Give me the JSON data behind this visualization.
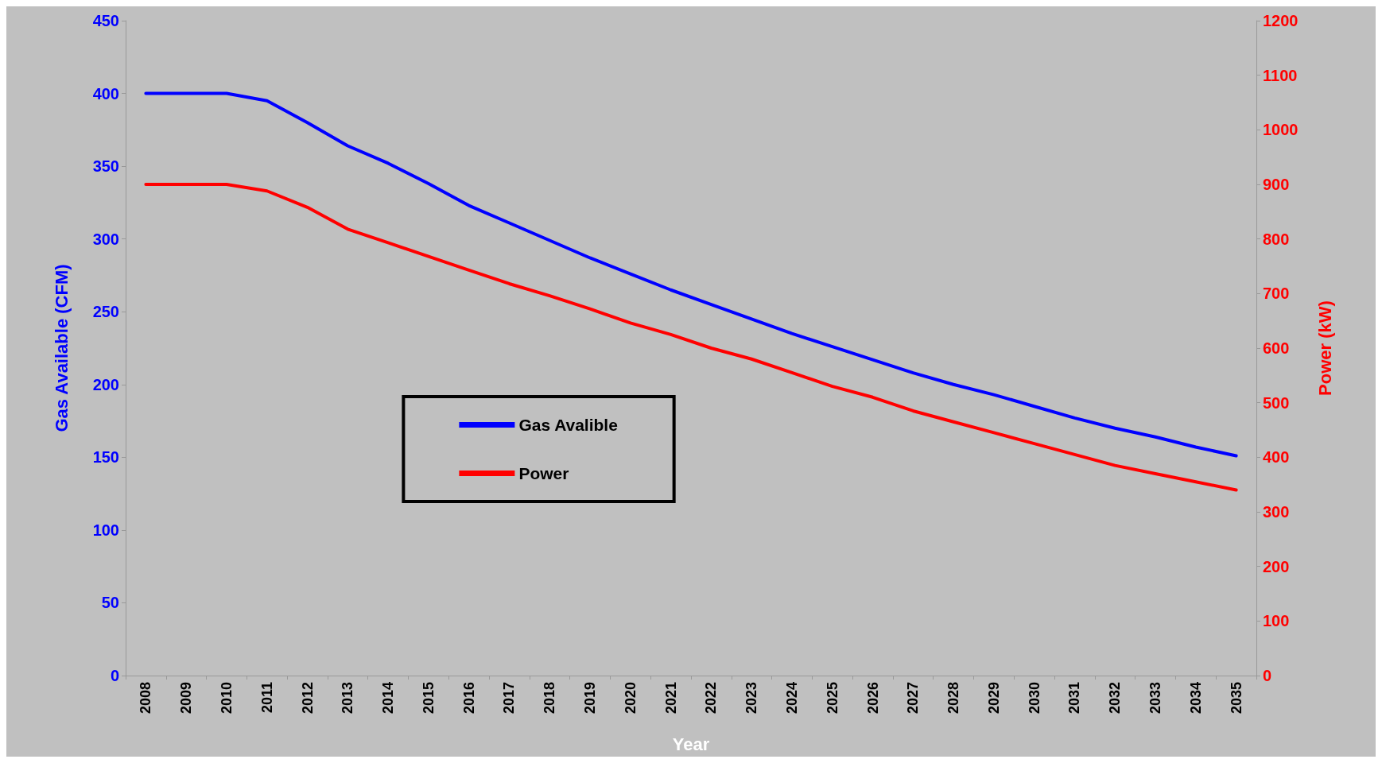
{
  "chart_data": {
    "type": "line",
    "xlabel": "Year",
    "ylabel": "Gas Available (CFM)",
    "y2label": "Power (kW)",
    "categories": [
      "2008",
      "2009",
      "2010",
      "2011",
      "2012",
      "2013",
      "2014",
      "2015",
      "2016",
      "2017",
      "2018",
      "2019",
      "2020",
      "2021",
      "2022",
      "2023",
      "2024",
      "2025",
      "2026",
      "2027",
      "2028",
      "2029",
      "2030",
      "2031",
      "2032",
      "2033",
      "2034",
      "2035"
    ],
    "series": [
      {
        "name": "Gas Avalible",
        "color": "#0000ff",
        "values": [
          400,
          400,
          400,
          395,
          380,
          364,
          352,
          338,
          323,
          311,
          299,
          287,
          276,
          265,
          255,
          245,
          235,
          226,
          217,
          208,
          200,
          193,
          185,
          177,
          170,
          164,
          157,
          151
        ]
      },
      {
        "name": "Power",
        "color": "#ff0000",
        "axis": "y2",
        "values": [
          900,
          900,
          900,
          888,
          858,
          818,
          793,
          768,
          743,
          718,
          696,
          672,
          646,
          625,
          600,
          580,
          555,
          530,
          510,
          485,
          465,
          445,
          425,
          405,
          385,
          370,
          355,
          340
        ]
      }
    ],
    "ylim": [
      0,
      450
    ],
    "yticks": [
      0,
      50,
      100,
      150,
      200,
      250,
      300,
      350,
      400,
      450
    ],
    "y2lim": [
      0,
      1200
    ],
    "y2ticks": [
      0,
      100,
      200,
      300,
      400,
      500,
      600,
      700,
      800,
      900,
      1000,
      1100,
      1200
    ],
    "grid": false,
    "legend": "center",
    "marker": "none",
    "line_style": "solid"
  }
}
